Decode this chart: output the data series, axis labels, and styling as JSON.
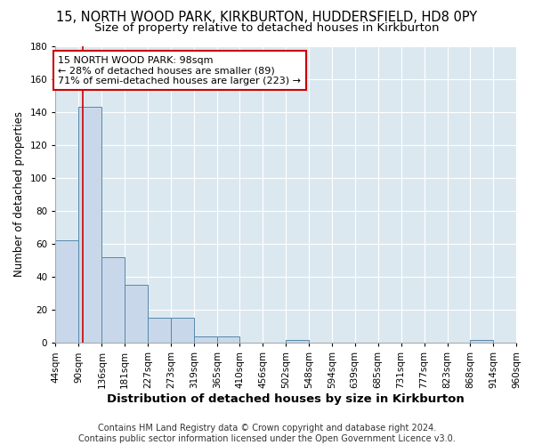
{
  "title": "15, NORTH WOOD PARK, KIRKBURTON, HUDDERSFIELD, HD8 0PY",
  "subtitle": "Size of property relative to detached houses in Kirkburton",
  "xlabel": "Distribution of detached houses by size in Kirkburton",
  "ylabel": "Number of detached properties",
  "bin_edges": [
    44,
    90,
    136,
    181,
    227,
    273,
    319,
    365,
    410,
    456,
    502,
    548,
    594,
    639,
    685,
    731,
    777,
    823,
    868,
    914,
    960
  ],
  "bar_heights": [
    62,
    143,
    52,
    35,
    15,
    15,
    4,
    4,
    0,
    0,
    2,
    0,
    0,
    0,
    0,
    0,
    0,
    0,
    2,
    0
  ],
  "bar_color": "#c8d8ea",
  "bar_edge_color": "#5588aa",
  "background_color": "#dce8f0",
  "grid_color": "#ffffff",
  "property_size": 98,
  "vline_color": "#cc0000",
  "annotation_line1": "15 NORTH WOOD PARK: 98sqm",
  "annotation_line2": "← 28% of detached houses are smaller (89)",
  "annotation_line3": "71% of semi-detached houses are larger (223) →",
  "annotation_box_color": "#ffffff",
  "annotation_border_color": "#cc0000",
  "ylim": [
    0,
    180
  ],
  "yticks": [
    0,
    20,
    40,
    60,
    80,
    100,
    120,
    140,
    160,
    180
  ],
  "footer_line1": "Contains HM Land Registry data © Crown copyright and database right 2024.",
  "footer_line2": "Contains public sector information licensed under the Open Government Licence v3.0.",
  "title_fontsize": 10.5,
  "subtitle_fontsize": 9.5,
  "xlabel_fontsize": 9.5,
  "ylabel_fontsize": 8.5,
  "tick_fontsize": 7.5,
  "annotation_fontsize": 8,
  "footer_fontsize": 7
}
